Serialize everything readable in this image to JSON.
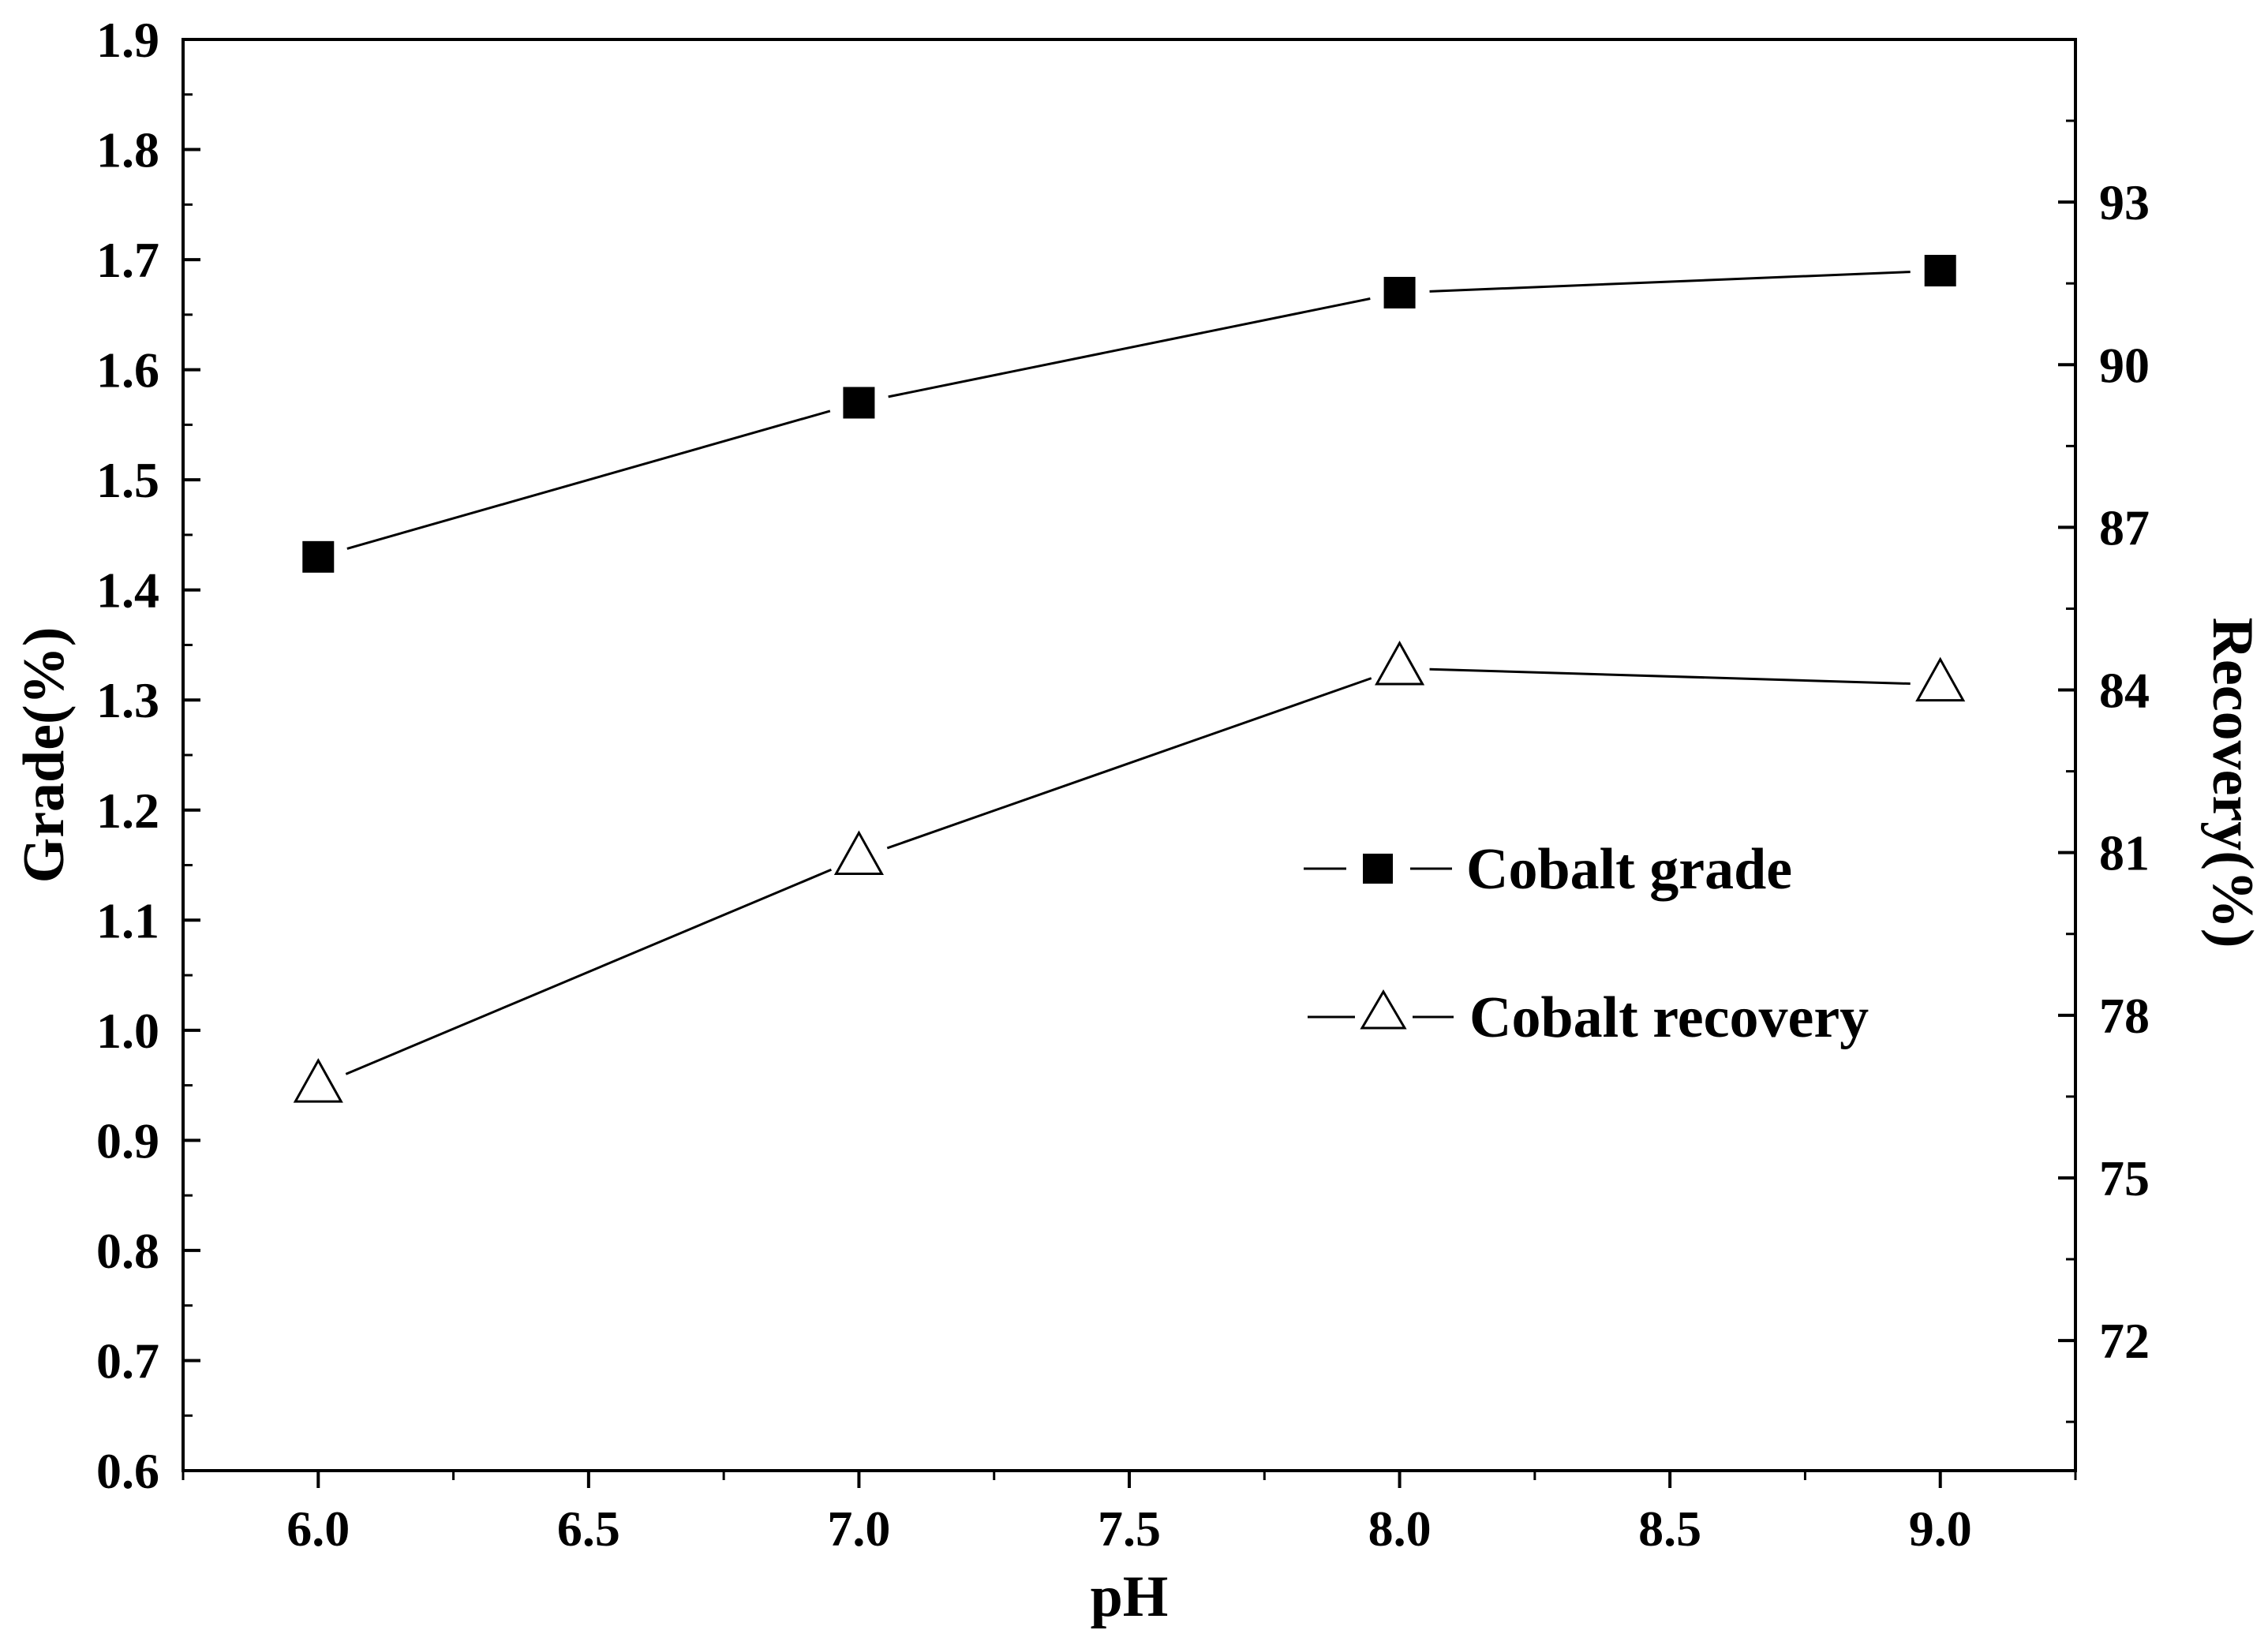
{
  "chart_data": {
    "type": "line",
    "xlabel": "pH",
    "ylabel_left": "Grade(%)",
    "ylabel_right": "Recovery(%)",
    "xlim": [
      5.75,
      9.25
    ],
    "ylim_left": [
      0.6,
      1.9
    ],
    "ylim_right": [
      69.6,
      96.0
    ],
    "x_ticks": [
      6.0,
      6.5,
      7.0,
      7.5,
      8.0,
      8.5,
      9.0
    ],
    "x_tick_labels": [
      "6.0",
      "6.5",
      "7.0",
      "7.5",
      "8.0",
      "8.5",
      "9.0"
    ],
    "y_left_ticks": [
      0.6,
      0.7,
      0.8,
      0.9,
      1.0,
      1.1,
      1.2,
      1.3,
      1.4,
      1.5,
      1.6,
      1.7,
      1.8,
      1.9
    ],
    "y_left_tick_labels": [
      "0.6",
      "0.7",
      "0.8",
      "0.9",
      "1.0",
      "1.1",
      "1.2",
      "1.3",
      "1.4",
      "1.5",
      "1.6",
      "1.7",
      "1.8",
      "1.9"
    ],
    "y_right_ticks": [
      72,
      75,
      78,
      81,
      84,
      87,
      90,
      93
    ],
    "y_right_tick_labels": [
      "72",
      "75",
      "78",
      "81",
      "84",
      "87",
      "90",
      "93"
    ],
    "grid": false,
    "legend_position": "center-right",
    "series": [
      {
        "name": "Cobalt grade",
        "axis": "left",
        "marker": "filled-square",
        "x": [
          6.0,
          7.0,
          8.0,
          9.0
        ],
        "values": [
          1.43,
          1.57,
          1.67,
          1.69
        ]
      },
      {
        "name": "Cobalt recovery",
        "axis": "right",
        "marker": "open-triangle",
        "x": [
          6.0,
          7.0,
          8.0,
          9.0
        ],
        "values": [
          76.7,
          80.9,
          84.4,
          84.1
        ]
      }
    ]
  }
}
